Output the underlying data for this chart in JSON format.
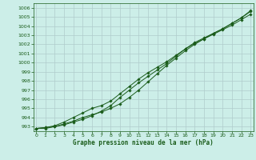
{
  "title": "Graphe pression niveau de la mer (hPa)",
  "background_color": "#cceee8",
  "grid_color": "#b0cccc",
  "line_color": "#1a5c1a",
  "x_values": [
    0,
    1,
    2,
    3,
    4,
    5,
    6,
    7,
    8,
    9,
    10,
    11,
    12,
    13,
    14,
    15,
    16,
    17,
    18,
    19,
    20,
    21,
    22,
    23
  ],
  "line1": [
    992.8,
    992.9,
    993.0,
    993.3,
    993.6,
    994.0,
    994.3,
    994.6,
    995.0,
    995.5,
    996.2,
    997.0,
    997.9,
    998.8,
    999.7,
    1000.5,
    1001.3,
    1002.0,
    1002.6,
    1003.1,
    1003.6,
    1004.1,
    1004.7,
    1005.3
  ],
  "line2": [
    992.8,
    992.9,
    993.1,
    993.5,
    994.0,
    994.5,
    995.0,
    995.3,
    995.8,
    996.6,
    997.4,
    998.2,
    998.9,
    999.5,
    1000.1,
    1000.8,
    1001.5,
    1002.1,
    1002.6,
    1003.2,
    1003.7,
    1004.3,
    1004.9,
    1005.6
  ],
  "line3": [
    992.8,
    992.8,
    993.0,
    993.2,
    993.5,
    993.8,
    994.2,
    994.7,
    995.3,
    996.2,
    997.0,
    997.8,
    998.5,
    999.2,
    999.9,
    1000.7,
    1001.5,
    1002.2,
    1002.7,
    1003.2,
    1003.7,
    1004.3,
    1004.9,
    1005.7
  ],
  "ylim": [
    992.5,
    1006.5
  ],
  "yticks": [
    993,
    994,
    995,
    996,
    997,
    998,
    999,
    1000,
    1001,
    1002,
    1003,
    1004,
    1005,
    1006
  ],
  "xlim": [
    -0.3,
    23.3
  ],
  "xticks": [
    0,
    1,
    2,
    3,
    4,
    5,
    6,
    7,
    8,
    9,
    10,
    11,
    12,
    13,
    14,
    15,
    16,
    17,
    18,
    19,
    20,
    21,
    22,
    23
  ]
}
